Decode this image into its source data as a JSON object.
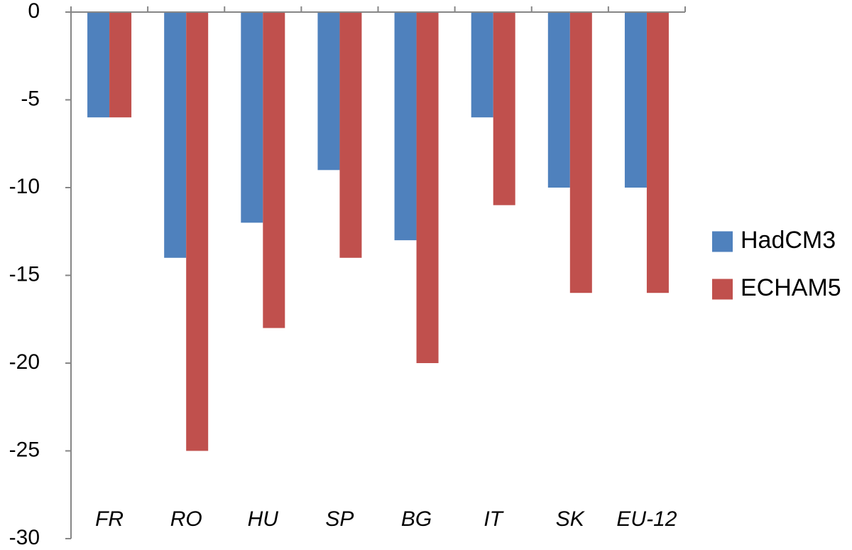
{
  "chart_data": {
    "type": "bar",
    "title": "",
    "xlabel": "",
    "ylabel": "",
    "categories": [
      "FR",
      "RO",
      "HU",
      "SP",
      "BG",
      "IT",
      "SK",
      "EU-12"
    ],
    "series": [
      {
        "name": "HadCM3",
        "color": "#4f81bd",
        "values": [
          -6,
          -14,
          -12,
          -9,
          -13,
          -6,
          -10,
          -10
        ]
      },
      {
        "name": "ECHAM5",
        "color": "#c0504d",
        "values": [
          -6,
          -25,
          -18,
          -14,
          -20,
          -11,
          -16,
          -16
        ]
      }
    ],
    "ylim": [
      -30,
      0
    ],
    "yticks": [
      "0",
      "-5",
      "-10",
      "-15",
      "-20",
      "-25",
      "-30"
    ],
    "ytick_values": [
      0,
      -5,
      -10,
      -15,
      -20,
      -25,
      -30
    ],
    "legend_position": "right",
    "grid": false
  }
}
